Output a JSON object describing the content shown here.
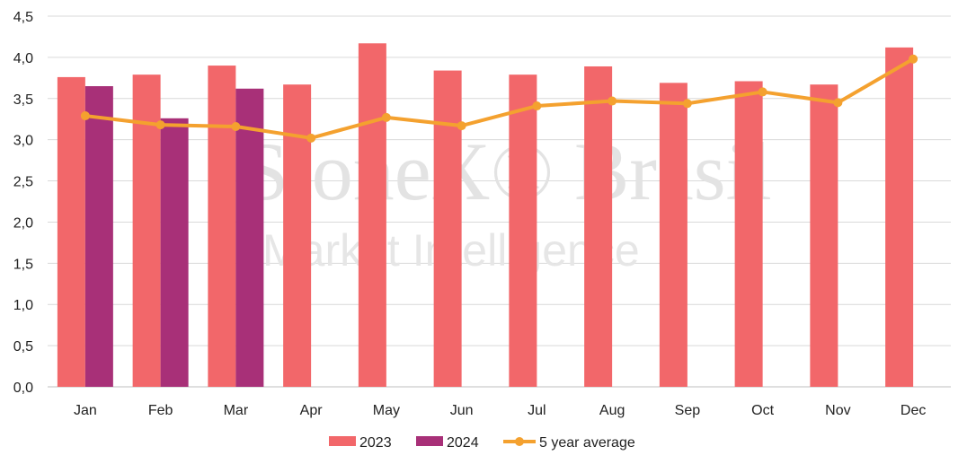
{
  "watermark": {
    "brand": "StoneX® Brasil",
    "tagline": "Market Intelligence"
  },
  "chart_data": {
    "type": "bar",
    "categories": [
      "Jan",
      "Feb",
      "Mar",
      "Apr",
      "May",
      "Jun",
      "Jul",
      "Aug",
      "Sep",
      "Oct",
      "Nov",
      "Dec"
    ],
    "series": [
      {
        "name": "2023",
        "kind": "bar",
        "color": "#f2676a",
        "values": [
          3.76,
          3.79,
          3.9,
          3.67,
          4.17,
          3.84,
          3.79,
          3.89,
          3.69,
          3.71,
          3.67,
          4.12
        ]
      },
      {
        "name": "2024",
        "kind": "bar",
        "color": "#a83078",
        "values": [
          3.65,
          3.26,
          3.62,
          null,
          null,
          null,
          null,
          null,
          null,
          null,
          null,
          null
        ]
      },
      {
        "name": "5 year average",
        "kind": "line",
        "color": "#f4a12f",
        "values": [
          3.29,
          3.18,
          3.16,
          3.02,
          3.27,
          3.17,
          3.41,
          3.47,
          3.44,
          3.58,
          3.45,
          3.98
        ]
      }
    ],
    "title": "",
    "xlabel": "",
    "ylabel": "",
    "ylim": [
      0,
      4.5
    ],
    "yticks": [
      "0,0",
      "0,5",
      "1,0",
      "1,5",
      "2,0",
      "2,5",
      "3,0",
      "3,5",
      "4,0",
      "4,5"
    ],
    "grid": true,
    "legend_position": "bottom"
  }
}
